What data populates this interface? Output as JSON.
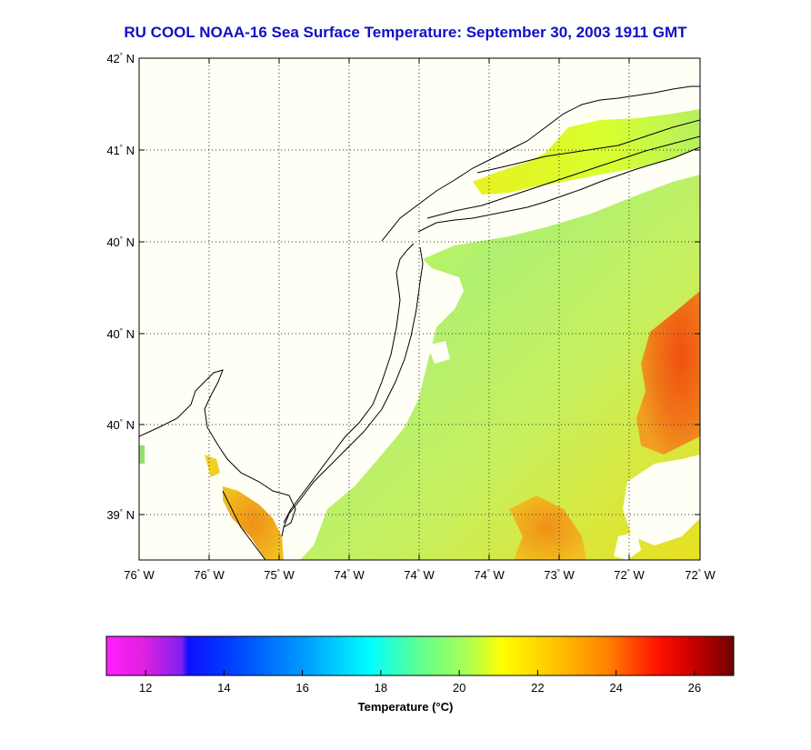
{
  "title": "RU COOL  NOAA-16  Sea Surface Temperature:  September 30, 2003 1911 GMT",
  "lat_labels": [
    "42",
    "41",
    "40",
    "40",
    "40",
    "39"
  ],
  "lat_suffix": "N",
  "lon_labels": [
    "76",
    "76",
    "75",
    "74",
    "74",
    "74",
    "73",
    "72",
    "72"
  ],
  "lon_suffix": "W",
  "colorbar": {
    "title": "Temperature (°C)",
    "ticks": [
      "12",
      "14",
      "16",
      "18",
      "20",
      "22",
      "24",
      "26"
    ],
    "range": [
      11,
      27
    ]
  },
  "colors": {
    "title": "#1010c8",
    "land": "#fffff6",
    "coast": "#000000"
  }
}
